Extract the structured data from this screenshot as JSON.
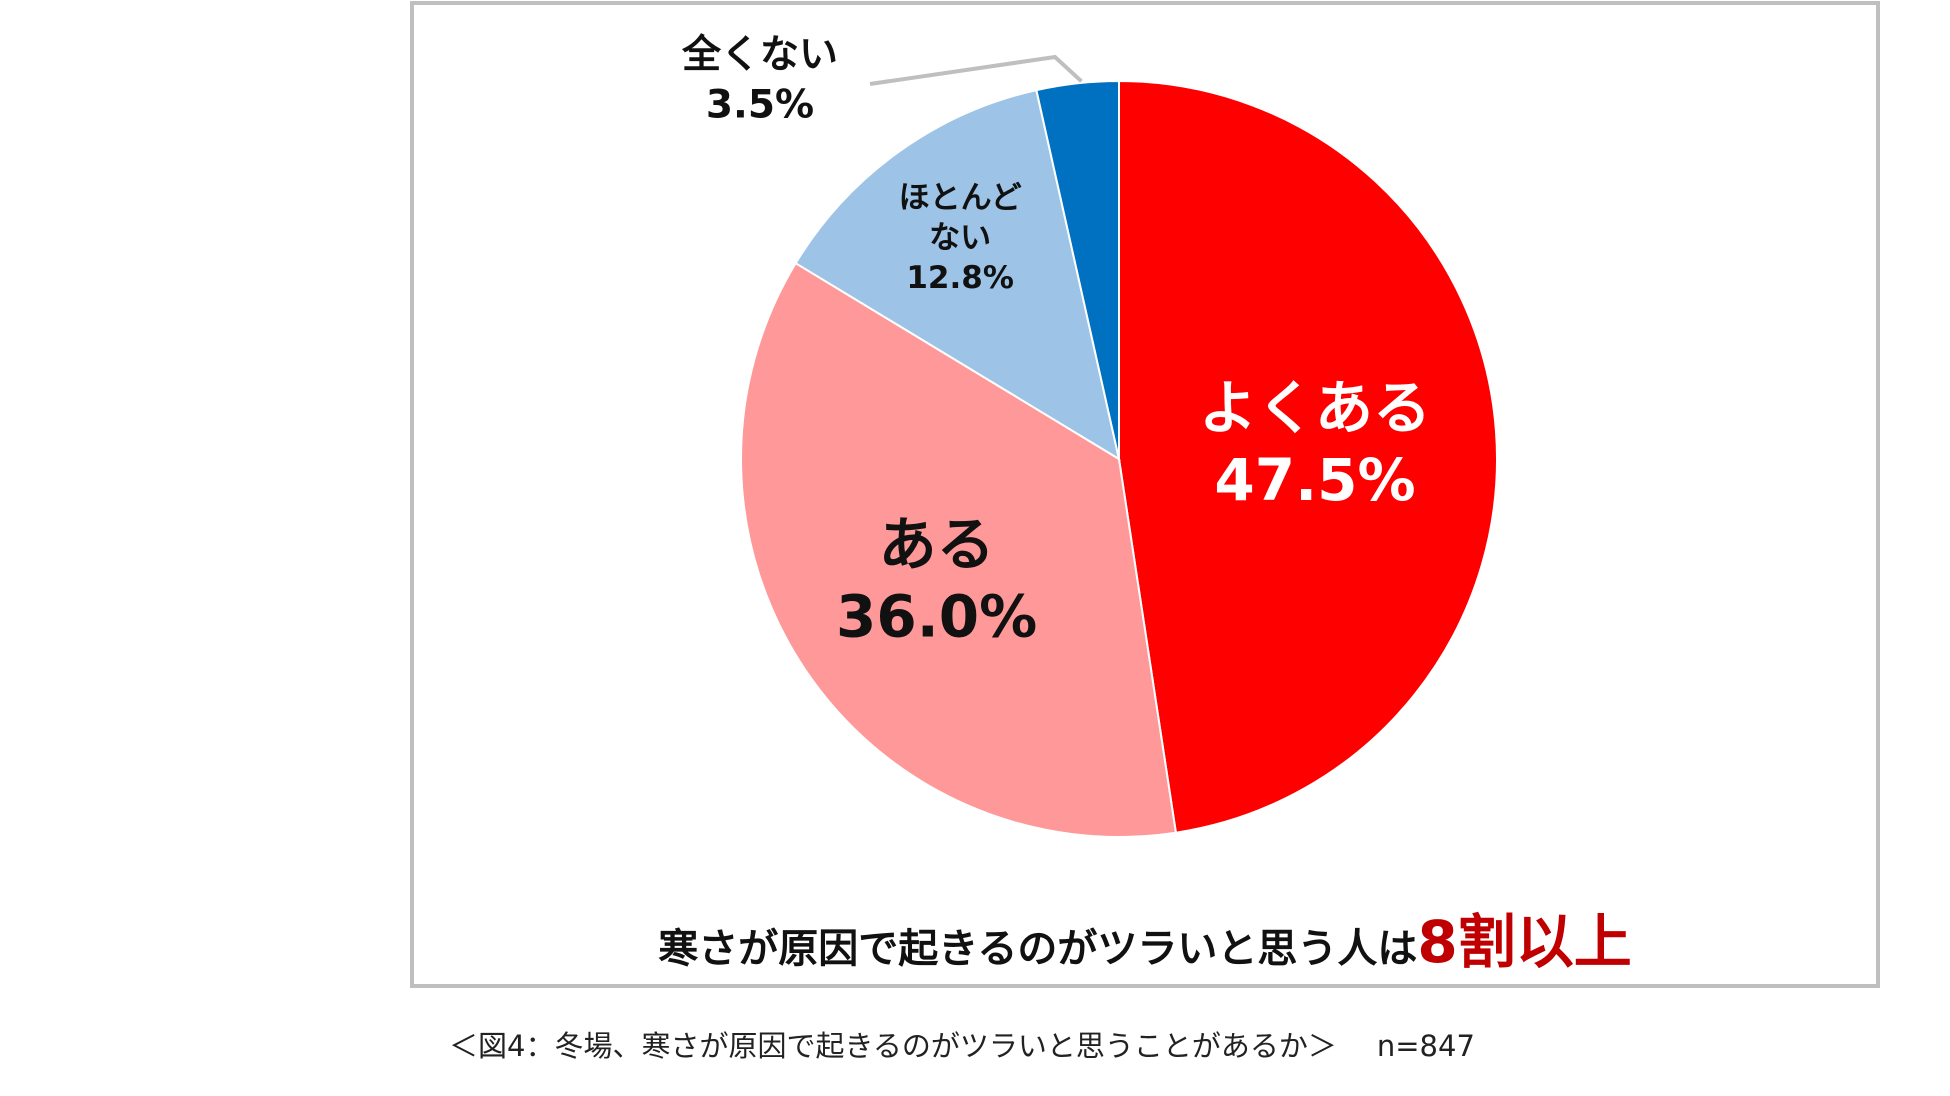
{
  "chart_data": {
    "type": "pie",
    "categories": [
      "よくある",
      "ある",
      "ほとんどない",
      "全くない"
    ],
    "values": [
      47.5,
      36.0,
      12.8,
      3.5
    ],
    "value_labels": [
      "47.5%",
      "36.0%",
      "12.8%",
      "3.5%"
    ],
    "label_lines": [
      [
        "よくある"
      ],
      [
        "ある"
      ],
      [
        "ほとんど",
        "ない"
      ],
      [
        "全くない"
      ]
    ],
    "colors": [
      "#ff0000",
      "#ff9999",
      "#9dc3e6",
      "#0070c0"
    ],
    "label_colors": [
      "#ffffff",
      "#111111",
      "#111111",
      "#111111"
    ],
    "start_angle": "12 o'clock",
    "direction": "clockwise"
  },
  "headline": {
    "lead": "寒さが原因で起きるのがツラいと思う人は",
    "emphasis": "8割以上"
  },
  "caption": {
    "text": "＜図4：冬場、寒さが原因で起きるのがツラいと思うことがあるか＞",
    "n": "n=847"
  }
}
